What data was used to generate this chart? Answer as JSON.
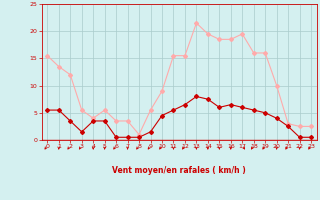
{
  "x": [
    0,
    1,
    2,
    3,
    4,
    5,
    6,
    7,
    8,
    9,
    10,
    11,
    12,
    13,
    14,
    15,
    16,
    17,
    18,
    19,
    20,
    21,
    22,
    23
  ],
  "wind_avg": [
    5.5,
    5.5,
    3.5,
    1.5,
    3.5,
    3.5,
    0.5,
    0.5,
    0.5,
    1.5,
    4.5,
    5.5,
    6.5,
    8.0,
    7.5,
    6.0,
    6.5,
    6.0,
    5.5,
    5.0,
    4.0,
    2.5,
    0.5,
    0.5
  ],
  "wind_gust": [
    15.5,
    13.5,
    12.0,
    5.5,
    4.0,
    5.5,
    3.5,
    3.5,
    1.0,
    5.5,
    9.0,
    15.5,
    15.5,
    21.5,
    19.5,
    18.5,
    18.5,
    19.5,
    16.0,
    16.0,
    10.0,
    3.0,
    2.5,
    2.5
  ],
  "avg_color": "#cc0000",
  "gust_color": "#ffaaaa",
  "bg_color": "#d4f0f0",
  "grid_color": "#aacccc",
  "xlabel": "Vent moyen/en rafales ( km/h )",
  "ylim": [
    0,
    25
  ],
  "xlim_min": -0.5,
  "xlim_max": 23.5,
  "yticks": [
    0,
    5,
    10,
    15,
    20,
    25
  ],
  "xticks": [
    0,
    1,
    2,
    3,
    4,
    5,
    6,
    7,
    8,
    9,
    10,
    11,
    12,
    13,
    14,
    15,
    16,
    17,
    18,
    19,
    20,
    21,
    22,
    23
  ],
  "wind_dirs_deg": [
    225,
    270,
    225,
    225,
    270,
    270,
    225,
    270,
    225,
    225,
    225,
    270,
    225,
    270,
    270,
    270,
    270,
    315,
    225,
    225,
    270,
    225,
    270,
    225
  ]
}
